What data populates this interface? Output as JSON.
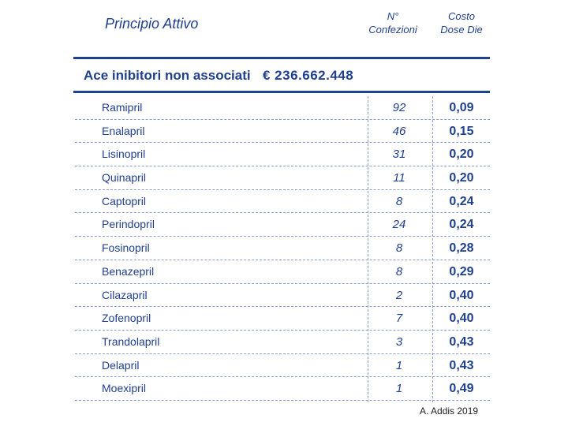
{
  "header": {
    "principio_attivo": "Principio Attivo",
    "confezioni": [
      "N°",
      "Confezioni"
    ],
    "costo": [
      "Costo",
      "Dose Die"
    ]
  },
  "group": {
    "label": "Ace inibitori non associati",
    "total": "€ 236.662.448"
  },
  "rows": [
    {
      "name": "Ramipril",
      "confezioni": "92",
      "costo": "0,09"
    },
    {
      "name": "Enalapril",
      "confezioni": "46",
      "costo": "0,15"
    },
    {
      "name": "Lisinopril",
      "confezioni": "31",
      "costo": "0,20"
    },
    {
      "name": "Quinapril",
      "confezioni": "11",
      "costo": "0,20"
    },
    {
      "name": "Captopril",
      "confezioni": "8",
      "costo": "0,24"
    },
    {
      "name": "Perindopril",
      "confezioni": "24",
      "costo": "0,24"
    },
    {
      "name": "Fosinopril",
      "confezioni": "8",
      "costo": "0,28"
    },
    {
      "name": "Benazepril",
      "confezioni": "8",
      "costo": "0,29"
    },
    {
      "name": "Cilazapril",
      "confezioni": "2",
      "costo": "0,40"
    },
    {
      "name": "Zofenopril",
      "confezioni": "7",
      "costo": "0,40"
    },
    {
      "name": "Trandolapril",
      "confezioni": "3",
      "costo": "0,43"
    },
    {
      "name": "Delapril",
      "confezioni": "1",
      "costo": "0,43"
    },
    {
      "name": "Moexipril",
      "confezioni": "1",
      "costo": "0,49"
    }
  ],
  "credit": "A. Addis 2019",
  "colors": {
    "ink": "#1f3f8f"
  }
}
